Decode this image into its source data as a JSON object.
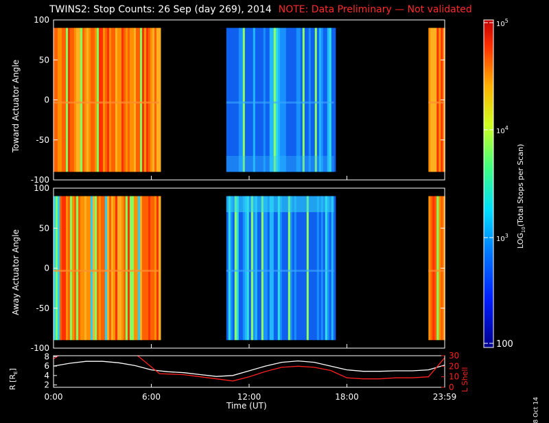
{
  "title": "TWINS2: Stop Counts: 26 Sep (day 269), 2014",
  "note": "NOTE: Data Preliminary — Not validated",
  "date_stamp": "8 Oct 14",
  "chart_data": [
    {
      "type": "heatmap",
      "ylabel": "Toward Actuator Angle",
      "yticks": [
        "100",
        "50",
        "0",
        "-50",
        "-100"
      ],
      "ylim": [
        -100,
        100
      ],
      "data_segments": [
        {
          "start_h": 0.0,
          "end_h": 6.5,
          "level": "high"
        },
        {
          "start_h": 10.6,
          "end_h": 17.2,
          "level": "low"
        },
        {
          "start_h": 23.0,
          "end_h": 24.0,
          "level": "high"
        }
      ]
    },
    {
      "type": "heatmap",
      "ylabel": "Away Actuator Angle",
      "yticks": [
        "100",
        "50",
        "0",
        "-50",
        "-100"
      ],
      "ylim": [
        -100,
        100
      ],
      "data_segments": [
        {
          "start_h": 0.0,
          "end_h": 6.5,
          "level": "high"
        },
        {
          "start_h": 10.6,
          "end_h": 17.2,
          "level": "low"
        },
        {
          "start_h": 23.0,
          "end_h": 24.0,
          "level": "high"
        }
      ]
    },
    {
      "type": "line",
      "ylabel_left": "R [R",
      "ylabel_left_sub": "E",
      "ylabel_left_close": "]",
      "ylabel_right": "L Shell",
      "yticks_left": [
        "8",
        "6",
        "4",
        "2"
      ],
      "yticks_right": [
        "30",
        "20",
        "10",
        "0"
      ],
      "ylim_left": [
        1.5,
        8.2
      ],
      "ylim_right": [
        0,
        30
      ],
      "xlabel": "Time (UT)",
      "xticks": [
        "0:00",
        "6:00",
        "12:00",
        "18:00",
        "23:59"
      ],
      "xtick_hours": [
        0,
        6,
        12,
        18,
        24
      ],
      "series": [
        {
          "color": "#ffffff",
          "x": [
            0,
            1,
            2,
            3,
            4,
            5,
            6,
            7,
            8,
            9,
            10,
            11,
            12,
            13,
            14,
            15,
            16,
            17,
            18,
            19,
            20,
            21,
            22,
            23,
            24
          ],
          "y": [
            6.0,
            6.6,
            7.0,
            7.0,
            6.7,
            6.1,
            5.2,
            4.8,
            4.6,
            4.2,
            3.8,
            4.0,
            5.0,
            6.0,
            6.8,
            7.1,
            6.8,
            6.0,
            5.2,
            4.9,
            4.9,
            5.0,
            5.0,
            5.2,
            6.2
          ]
        },
        {
          "color": "#ff2020",
          "x": [
            0,
            0.5,
            5.0,
            6.5,
            8,
            9,
            10,
            11,
            12,
            13,
            14,
            15,
            16,
            17,
            18,
            19,
            20,
            21,
            22,
            23,
            24
          ],
          "y": [
            27,
            32,
            32,
            13,
            12,
            10,
            8,
            6,
            10,
            15,
            19,
            20,
            19,
            16,
            9,
            8,
            8,
            9,
            9,
            10,
            28
          ]
        }
      ]
    }
  ],
  "colorbar": {
    "label": "LOG",
    "label_sub": "10",
    "label_rest": "(Total Stops per Scan)",
    "ticks": [
      "10",
      "10",
      "10",
      "100"
    ],
    "tick_exps": [
      "5",
      "4",
      "3",
      ""
    ]
  }
}
